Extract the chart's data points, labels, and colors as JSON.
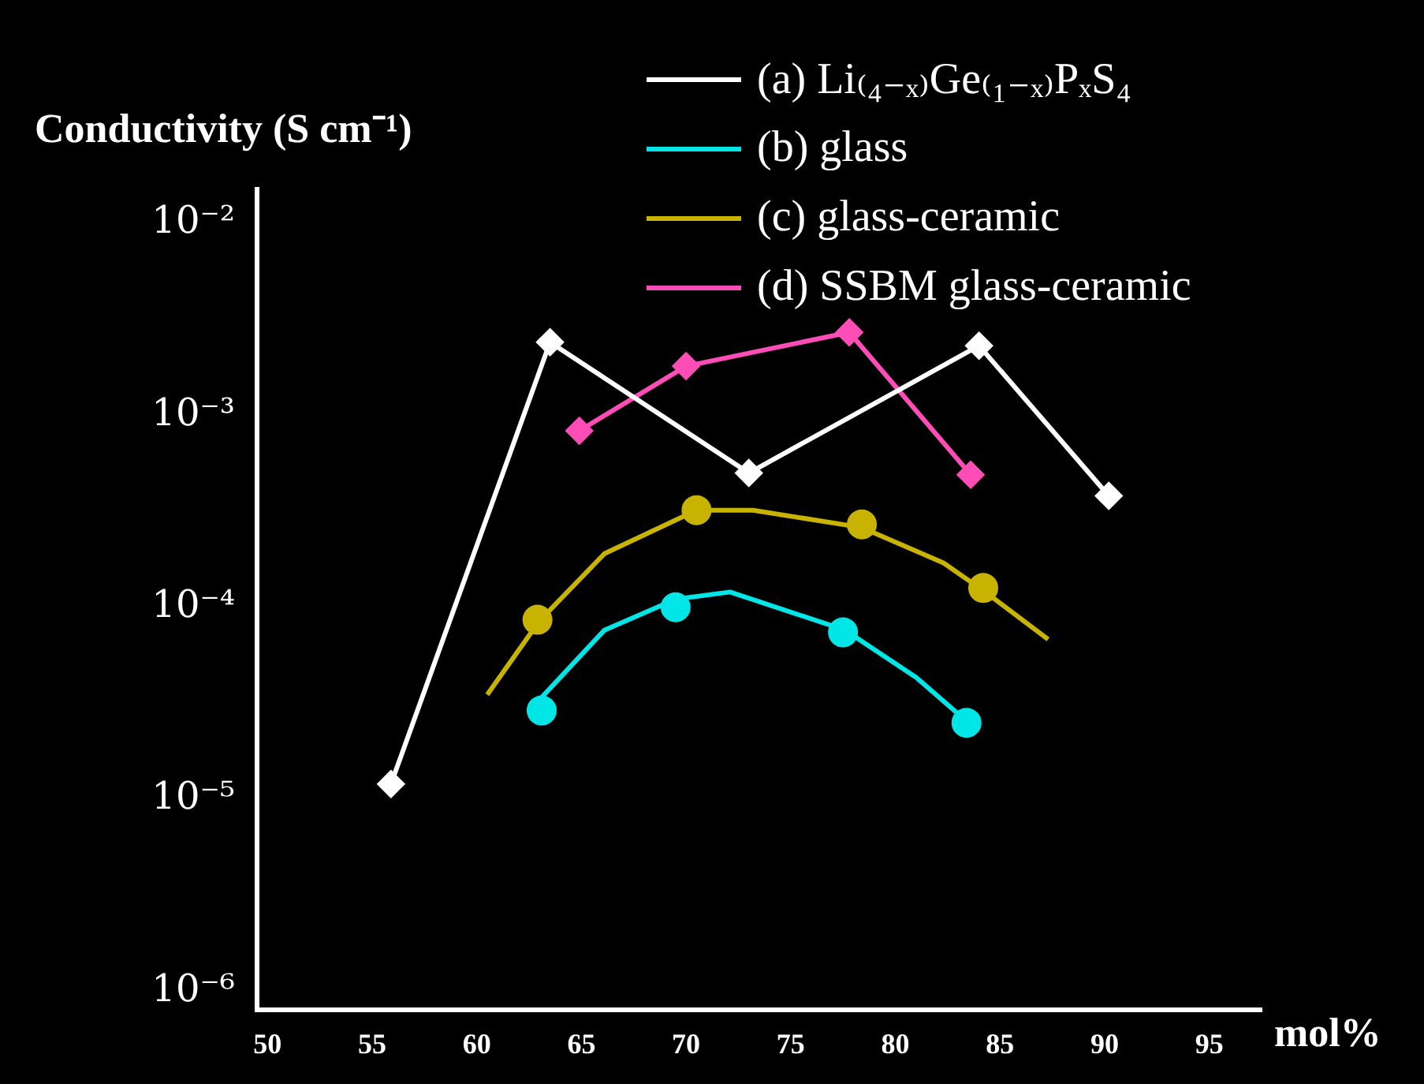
{
  "chart_data": {
    "type": "line",
    "xlabel": "mol%",
    "ylabel": "Conductivity (S cm⁻¹)",
    "log": "y",
    "grid": false,
    "legend": "top right",
    "xlim": [
      49.5,
      97.5
    ],
    "xticks": [
      50,
      55,
      60,
      65,
      70,
      75,
      80,
      85,
      90,
      95
    ],
    "ylim": [
      8e-07,
      0.015
    ],
    "yticks": [
      {
        "value": 0.01,
        "label": "10⁻²"
      },
      {
        "value": 0.001,
        "label": "10⁻³"
      },
      {
        "value": 0.0001,
        "label": "10⁻⁴"
      },
      {
        "value": 1e-05,
        "label": "10⁻⁵"
      },
      {
        "value": 1e-06,
        "label": "10⁻⁶"
      }
    ],
    "series": [
      {
        "name": "(a) Li₍₄₋ₓ₎Ge₍₁₋ₓ₎PₓS₄",
        "color": "#ffffff",
        "marker": "diamond",
        "x": [
          55.9,
          63.5,
          73,
          84,
          90.2
        ],
        "values": [
          1.2e-05,
          0.0024,
          0.0005,
          0.0023,
          0.00038
        ]
      },
      {
        "name": "(b) glass",
        "color": "#00e5e5",
        "marker": "none",
        "x": [
          63,
          66.1,
          69.5,
          72.1,
          77.6,
          81,
          83.5
        ],
        "values": [
          3.3e-05,
          7.6e-05,
          0.00011,
          0.00012,
          7.6e-05,
          4.3e-05,
          2.5e-05
        ]
      },
      {
        "color": "#00e5e5",
        "type": "scatter",
        "marker": "circle",
        "x": [
          63.1,
          69.5,
          77.5,
          83.4
        ],
        "values": [
          2.9e-05,
          0.0001,
          7.4e-05,
          2.5e-05
        ]
      },
      {
        "name": "(c) glass-ceramic",
        "color": "#c8b400",
        "marker": "none",
        "x": [
          60.5,
          63,
          66.1,
          70.5,
          73.2,
          78.4,
          82.3,
          84.3,
          87.3
        ],
        "values": [
          3.5e-05,
          8.5e-05,
          0.00019,
          0.00032,
          0.00032,
          0.00026,
          0.00017,
          0.00012,
          6.8e-05
        ]
      },
      {
        "color": "#c8b400",
        "type": "scatter",
        "marker": "circle",
        "x": [
          62.9,
          70.5,
          78.4,
          84.2
        ],
        "values": [
          8.6e-05,
          0.00032,
          0.00027,
          0.000126
        ]
      },
      {
        "name": "(d) SSBM glass-ceramic",
        "color": "#ff4db8",
        "marker": "diamond",
        "x": [
          64.9,
          70,
          77.8,
          83.6
        ],
        "values": [
          0.00083,
          0.0018,
          0.0027,
          0.00049
        ]
      }
    ]
  }
}
